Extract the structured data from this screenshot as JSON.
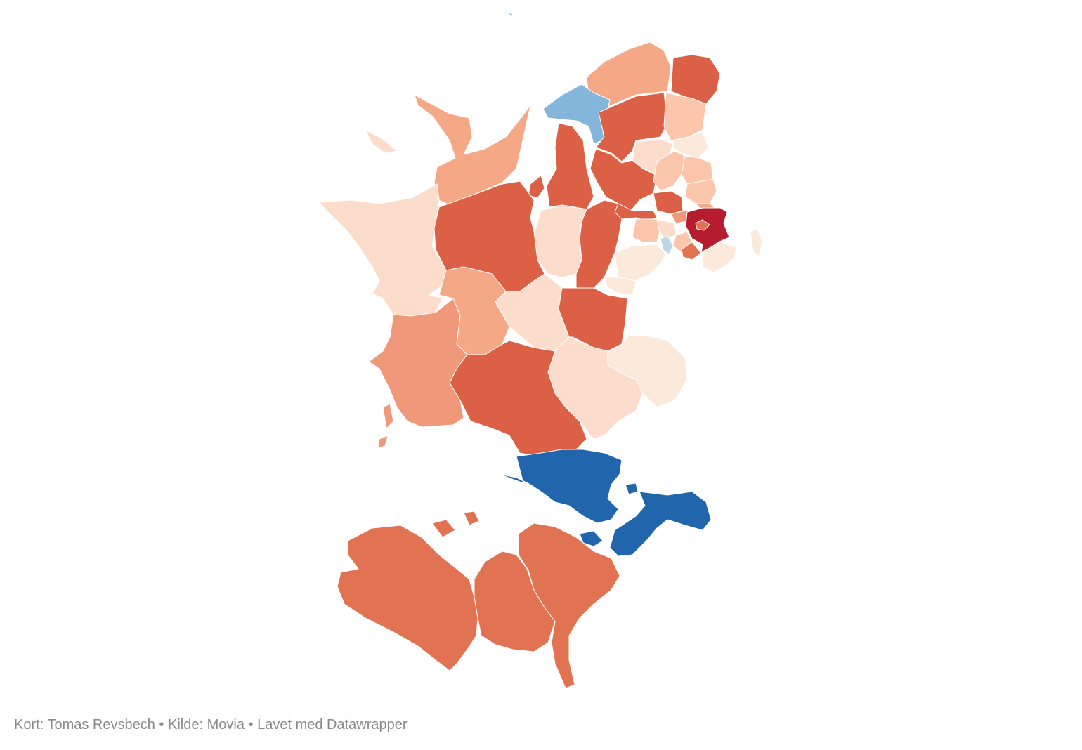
{
  "footer": {
    "credit_label": "Kort:",
    "credit_name": "Tomas Revsbech",
    "separator": "•",
    "source_label": "Kilde:",
    "source_name": "Movia",
    "tool_text": "Lavet med Datawrapper"
  },
  "map": {
    "scale": "diverging",
    "colors": {
      "darkest_red": "#b51d2e",
      "dark_red": "#dc6046",
      "red": "#e27352",
      "orange": "#f0987a",
      "salmon": "#f4a886",
      "light_salmon": "#fbc6ab",
      "peach": "#fcdcca",
      "cream": "#fbeadb",
      "light_blue": "#bcd7ea",
      "blue": "#83b6da",
      "dark_blue": "#2166ac"
    }
  }
}
